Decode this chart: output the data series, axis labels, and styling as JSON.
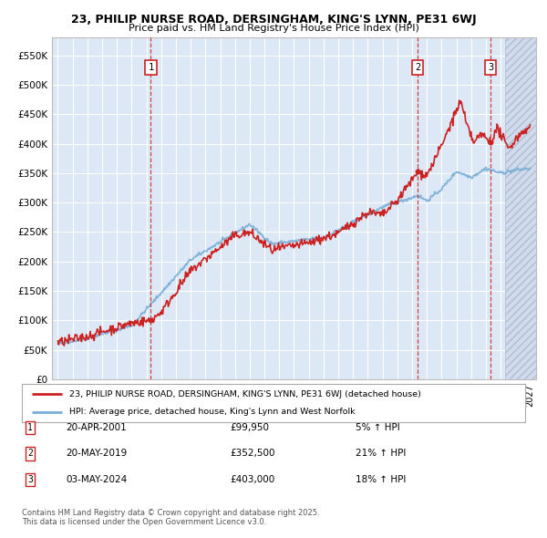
{
  "title_line1": "23, PHILIP NURSE ROAD, DERSINGHAM, KING'S LYNN, PE31 6WJ",
  "title_line2": "Price paid vs. HM Land Registry's House Price Index (HPI)",
  "bg_color": "#ffffff",
  "plot_bg_color": "#dce8f5",
  "grid_color": "#ffffff",
  "red_line_color": "#cc2222",
  "blue_line_color": "#7aaed6",
  "legend_label_red": "23, PHILIP NURSE ROAD, DERSINGHAM, KING'S LYNN, PE31 6WJ (detached house)",
  "legend_label_blue": "HPI: Average price, detached house, King's Lynn and West Norfolk",
  "footer_text": "Contains HM Land Registry data © Crown copyright and database right 2025.\nThis data is licensed under the Open Government Licence v3.0.",
  "transactions": [
    {
      "num": 1,
      "date": "20-APR-2001",
      "price": 99950,
      "pct": "5%",
      "dir": "↑",
      "year_x": 2001.3
    },
    {
      "num": 2,
      "date": "20-MAY-2019",
      "price": 352500,
      "pct": "21%",
      "dir": "↑",
      "year_x": 2019.38
    },
    {
      "num": 3,
      "date": "03-MAY-2024",
      "price": 403000,
      "pct": "18%",
      "dir": "↑",
      "year_x": 2024.33
    }
  ],
  "ylim": [
    0,
    580000
  ],
  "xlim_start": 1994.6,
  "xlim_end": 2027.4,
  "yticks": [
    0,
    50000,
    100000,
    150000,
    200000,
    250000,
    300000,
    350000,
    400000,
    450000,
    500000,
    550000
  ],
  "ytick_labels": [
    "£0",
    "£50K",
    "£100K",
    "£150K",
    "£200K",
    "£250K",
    "£300K",
    "£350K",
    "£400K",
    "£450K",
    "£500K",
    "£550K"
  ],
  "hatch_start": 2025.3,
  "trans_prices": [
    99950,
    352500,
    403000
  ],
  "trans_years": [
    2001.3,
    2019.38,
    2024.33
  ]
}
